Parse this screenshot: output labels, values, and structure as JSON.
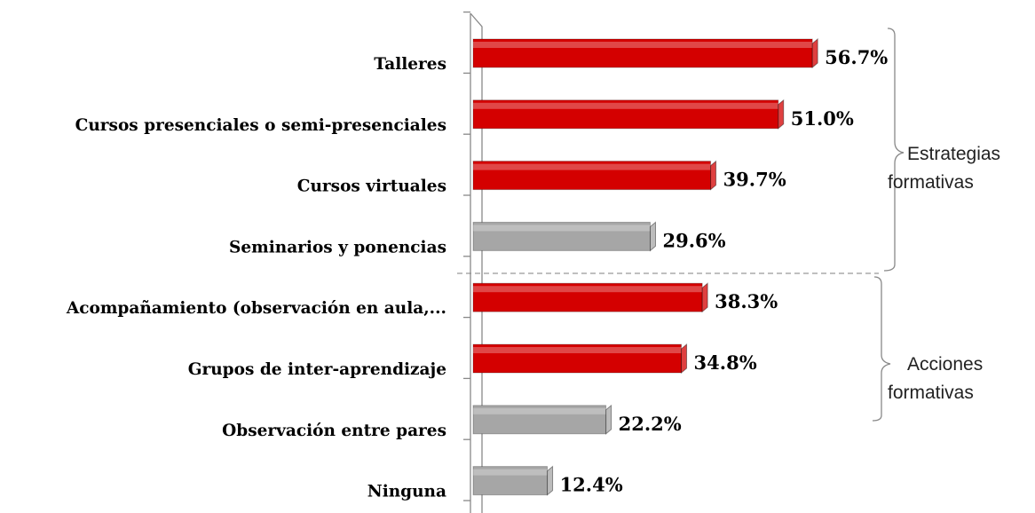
{
  "chart_data": {
    "type": "hbar",
    "categories": [
      "Talleres",
      "Cursos presenciales o semi-presenciales",
      "Cursos virtuales",
      "Seminarios y ponencias",
      "Acompañamiento (observación en aula,...",
      "Grupos de inter-aprendizaje",
      "Observación entre pares",
      "Ninguna"
    ],
    "values": [
      56.7,
      51.0,
      39.7,
      29.6,
      38.3,
      34.8,
      22.2,
      12.4
    ],
    "value_labels": [
      "56.7%",
      "51.0%",
      "39.7%",
      "29.6%",
      "38.3%",
      "34.8%",
      "22.2%",
      "12.4%"
    ],
    "colors": [
      "#d40000",
      "#d40000",
      "#d40000",
      "#a6a6a6",
      "#d40000",
      "#d40000",
      "#a6a6a6",
      "#a6a6a6"
    ],
    "xlim": [
      0,
      80
    ],
    "annotations": [
      [
        "Estrategias",
        "formativas"
      ],
      [
        "Acciones",
        "formativas"
      ]
    ]
  }
}
